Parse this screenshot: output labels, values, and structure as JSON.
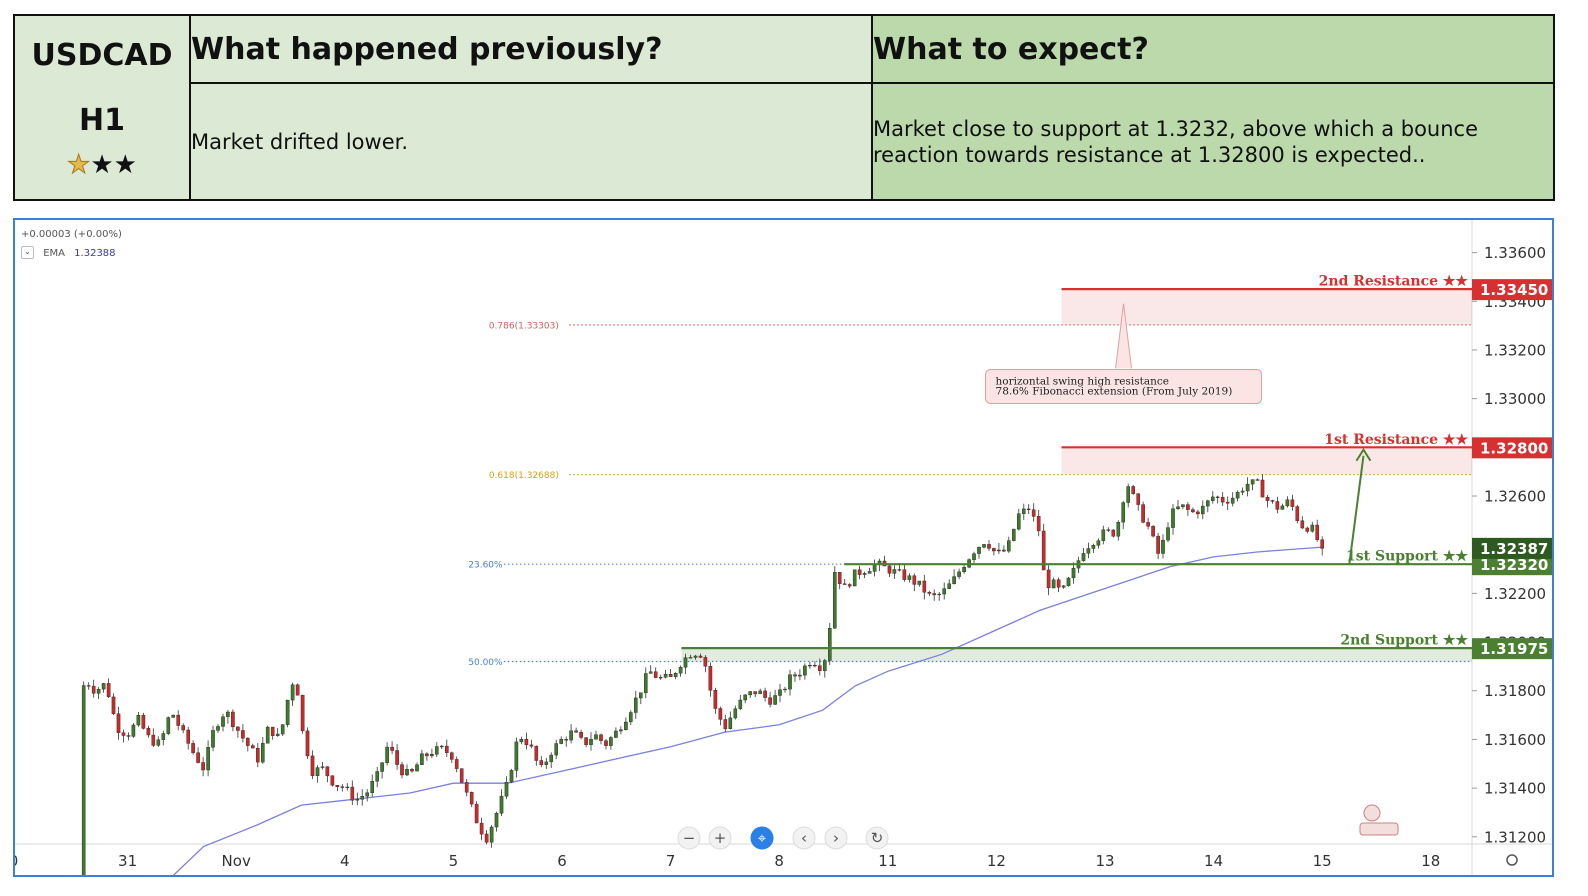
{
  "table": {
    "pair": "USDCAD",
    "timeframe": "H1",
    "rating_filled": 1,
    "rating_total": 3,
    "prev_header": "What happened previously?",
    "expect_header": "What to expect?",
    "prev_text": "Market drifted lower.",
    "expect_text": "Market close to support at 1.3232, above which a bounce reaction towards resistance at 1.32800 is expected.."
  },
  "legend": {
    "change": "+0.00003 (+0.00%)",
    "ema_label": "EMA",
    "ema_value": "1.32388"
  },
  "colors": {
    "up": "#3d7a2a",
    "down": "#cc2a2a",
    "ema": "#7b7fe0",
    "resistance": "#d63030",
    "support": "#4a8030",
    "fib618": "#d4a020",
    "fib786": "#d06060",
    "fibblue": "#4a80d0",
    "border": "#3b7fd9"
  },
  "chart_data": {
    "type": "candlestick",
    "symbol": "USDCAD",
    "timeframe": "H1",
    "ylim": [
      1.3108,
      1.3366
    ],
    "y_ticks": [
      "1.33600",
      "1.33400",
      "1.33200",
      "1.33000",
      "1.32800",
      "1.32600",
      "1.32400",
      "1.32200",
      "1.32000",
      "1.31800",
      "1.31600",
      "1.31400",
      "1.31200"
    ],
    "y_tick_values": [
      1.336,
      1.334,
      1.332,
      1.33,
      1.328,
      1.326,
      1.324,
      1.322,
      1.32,
      1.318,
      1.316,
      1.314,
      1.312
    ],
    "x_ticks": [
      {
        "label": "0",
        "day": -0.05
      },
      {
        "label": "31",
        "day": 1
      },
      {
        "label": "Nov",
        "day": 2
      },
      {
        "label": "4",
        "day": 3
      },
      {
        "label": "5",
        "day": 4
      },
      {
        "label": "6",
        "day": 5
      },
      {
        "label": "7",
        "day": 6
      },
      {
        "label": "8",
        "day": 7
      },
      {
        "label": "11",
        "day": 8
      },
      {
        "label": "12",
        "day": 9
      },
      {
        "label": "13",
        "day": 10
      },
      {
        "label": "14",
        "day": 11
      },
      {
        "label": "15",
        "day": 12
      },
      {
        "label": "18",
        "day": 13
      }
    ],
    "price_path": [
      [
        0.55,
        1.3102
      ],
      [
        0.57,
        1.3165
      ],
      [
        0.6,
        1.3185
      ],
      [
        0.7,
        1.318
      ],
      [
        0.8,
        1.3183
      ],
      [
        0.9,
        1.3165
      ],
      [
        1.0,
        1.3162
      ],
      [
        1.1,
        1.3168
      ],
      [
        1.2,
        1.316
      ],
      [
        1.3,
        1.3158
      ],
      [
        1.4,
        1.3172
      ],
      [
        1.5,
        1.3163
      ],
      [
        1.6,
        1.3155
      ],
      [
        1.7,
        1.3148
      ],
      [
        1.8,
        1.3165
      ],
      [
        1.9,
        1.3172
      ],
      [
        2.0,
        1.3165
      ],
      [
        2.1,
        1.3158
      ],
      [
        2.2,
        1.3152
      ],
      [
        2.3,
        1.3165
      ],
      [
        2.4,
        1.316
      ],
      [
        2.5,
        1.3182
      ],
      [
        2.55,
        1.3186
      ],
      [
        2.6,
        1.3165
      ],
      [
        2.7,
        1.3147
      ],
      [
        2.8,
        1.3148
      ],
      [
        2.9,
        1.3142
      ],
      [
        3.0,
        1.314
      ],
      [
        3.1,
        1.3135
      ],
      [
        3.2,
        1.3138
      ],
      [
        3.3,
        1.3145
      ],
      [
        3.4,
        1.3158
      ],
      [
        3.5,
        1.3148
      ],
      [
        3.6,
        1.3145
      ],
      [
        3.7,
        1.3152
      ],
      [
        3.8,
        1.3155
      ],
      [
        3.9,
        1.3156
      ],
      [
        4.0,
        1.3153
      ],
      [
        4.1,
        1.314
      ],
      [
        4.2,
        1.3128
      ],
      [
        4.3,
        1.3119
      ],
      [
        4.4,
        1.313
      ],
      [
        4.5,
        1.3142
      ],
      [
        4.6,
        1.3162
      ],
      [
        4.7,
        1.3158
      ],
      [
        4.8,
        1.3147
      ],
      [
        4.9,
        1.3155
      ],
      [
        5.0,
        1.316
      ],
      [
        5.1,
        1.3163
      ],
      [
        5.2,
        1.3158
      ],
      [
        5.3,
        1.3162
      ],
      [
        5.4,
        1.3158
      ],
      [
        5.5,
        1.3163
      ],
      [
        5.6,
        1.317
      ],
      [
        5.7,
        1.3178
      ],
      [
        5.8,
        1.3188
      ],
      [
        5.9,
        1.3185
      ],
      [
        6.0,
        1.3185
      ],
      [
        6.1,
        1.3192
      ],
      [
        6.2,
        1.3196
      ],
      [
        6.3,
        1.3195
      ],
      [
        6.4,
        1.3173
      ],
      [
        6.5,
        1.3165
      ],
      [
        6.6,
        1.3173
      ],
      [
        6.7,
        1.3178
      ],
      [
        6.8,
        1.318
      ],
      [
        6.9,
        1.3176
      ],
      [
        7.0,
        1.3178
      ],
      [
        7.1,
        1.3185
      ],
      [
        7.2,
        1.3188
      ],
      [
        7.3,
        1.3193
      ],
      [
        7.38,
        1.319
      ],
      [
        7.45,
        1.3196
      ],
      [
        7.5,
        1.323
      ],
      [
        7.6,
        1.3222
      ],
      [
        7.7,
        1.3228
      ],
      [
        7.8,
        1.323
      ],
      [
        7.9,
        1.3232
      ],
      [
        8.0,
        1.323
      ],
      [
        8.1,
        1.3228
      ],
      [
        8.2,
        1.3226
      ],
      [
        8.3,
        1.3223
      ],
      [
        8.4,
        1.3218
      ],
      [
        8.5,
        1.322
      ],
      [
        8.6,
        1.3225
      ],
      [
        8.7,
        1.3232
      ],
      [
        8.8,
        1.3238
      ],
      [
        8.9,
        1.3242
      ],
      [
        9.0,
        1.3236
      ],
      [
        9.1,
        1.3238
      ],
      [
        9.15,
        1.3245
      ],
      [
        9.2,
        1.3252
      ],
      [
        9.3,
        1.3255
      ],
      [
        9.4,
        1.3245
      ],
      [
        9.45,
        1.3222
      ],
      [
        9.5,
        1.3225
      ],
      [
        9.6,
        1.322
      ],
      [
        9.7,
        1.3228
      ],
      [
        9.8,
        1.3238
      ],
      [
        9.9,
        1.3242
      ],
      [
        10.0,
        1.3245
      ],
      [
        10.1,
        1.3245
      ],
      [
        10.2,
        1.3266
      ],
      [
        10.3,
        1.3255
      ],
      [
        10.4,
        1.3247
      ],
      [
        10.5,
        1.3235
      ],
      [
        10.6,
        1.3252
      ],
      [
        10.7,
        1.3256
      ],
      [
        10.8,
        1.3253
      ],
      [
        10.9,
        1.3255
      ],
      [
        11.0,
        1.326
      ],
      [
        11.1,
        1.3258
      ],
      [
        11.2,
        1.326
      ],
      [
        11.3,
        1.3265
      ],
      [
        11.4,
        1.3265
      ],
      [
        11.5,
        1.3258
      ],
      [
        11.6,
        1.3255
      ],
      [
        11.7,
        1.3258
      ],
      [
        11.8,
        1.3248
      ],
      [
        11.9,
        1.3247
      ],
      [
        12.0,
        1.3238
      ]
    ],
    "ema_path": [
      [
        1.3,
        1.3099
      ],
      [
        1.7,
        1.3116
      ],
      [
        2.2,
        1.3125
      ],
      [
        2.6,
        1.3133
      ],
      [
        3.0,
        1.3135
      ],
      [
        3.6,
        1.3138
      ],
      [
        4.0,
        1.3142
      ],
      [
        4.5,
        1.3142
      ],
      [
        5.0,
        1.3147
      ],
      [
        5.5,
        1.3152
      ],
      [
        6.0,
        1.3157
      ],
      [
        6.5,
        1.3163
      ],
      [
        7.0,
        1.3166
      ],
      [
        7.4,
        1.3172
      ],
      [
        7.7,
        1.3182
      ],
      [
        8.0,
        1.3188
      ],
      [
        8.5,
        1.3195
      ],
      [
        9.0,
        1.3205
      ],
      [
        9.4,
        1.3213
      ],
      [
        9.8,
        1.3219
      ],
      [
        10.2,
        1.3225
      ],
      [
        10.6,
        1.3231
      ],
      [
        11.0,
        1.3235
      ],
      [
        11.4,
        1.3237
      ],
      [
        12.0,
        1.3239
      ]
    ],
    "levels": [
      {
        "name": "2nd Resistance",
        "label": "2nd Resistance ★★",
        "value": 1.3345,
        "price_label": "1.33450",
        "kind": "resistance",
        "start_day": 9.6
      },
      {
        "name": "1st Resistance",
        "label": "1st Resistance ★★",
        "value": 1.328,
        "price_label": "1.32800",
        "kind": "resistance",
        "start_day": 9.6
      },
      {
        "name": "1st Support",
        "label": "1st Support ★★",
        "value": 1.3232,
        "price_label": "1.32320",
        "kind": "support",
        "start_day": 7.6
      },
      {
        "name": "2nd Support",
        "label": "2nd Support ★★",
        "value": 1.31975,
        "price_label": "1.31975",
        "kind": "support",
        "start_day": 6.1
      }
    ],
    "zones": [
      {
        "from": 1.3345,
        "to": 1.33303,
        "start_day": 9.6,
        "kind": "resistance"
      },
      {
        "from": 1.328,
        "to": 1.32688,
        "start_day": 9.6,
        "kind": "resistance"
      },
      {
        "from": 1.31975,
        "to": 1.3192,
        "start_day": 6.1,
        "kind": "support"
      }
    ],
    "fib_levels": [
      {
        "label": "0.786(1.33303)",
        "value": 1.33303,
        "kind": "fib786",
        "label_day": 4.4
      },
      {
        "label": "0.618(1.32688)",
        "value": 1.32688,
        "kind": "fib618",
        "label_day": 4.4
      },
      {
        "label": "23.60%",
        "value": 1.3232,
        "kind": "fibblue",
        "label_day": 4.1
      },
      {
        "label": "50.00%",
        "value": 1.3192,
        "kind": "fibblue",
        "label_day": 4.1
      }
    ],
    "current_price": {
      "value": 1.32387,
      "label": "1.32387"
    },
    "annotation": {
      "lines": [
        "horizontal swing high resistance",
        "78.6% Fibonacci extension (From July 2019)"
      ],
      "day": 8.9,
      "value": 1.3312
    },
    "arrow": {
      "from": [
        12.25,
        1.3232
      ],
      "to": [
        12.38,
        1.3279
      ]
    }
  }
}
